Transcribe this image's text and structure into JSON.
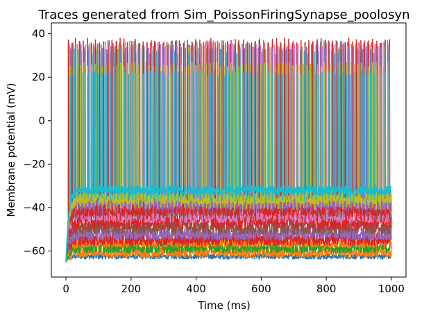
{
  "chart_data": {
    "type": "line",
    "title": "Traces generated from Sim_PoissonFiringSynapse_poolosyn",
    "xlabel": "Time (ms)",
    "ylabel": "Membrane potential (mV)",
    "xlim": [
      -45,
      1045
    ],
    "ylim": [
      -72,
      45
    ],
    "xticks": [
      0,
      200,
      400,
      600,
      800,
      1000
    ],
    "yticks": [
      -60,
      -40,
      -20,
      0,
      20,
      40
    ],
    "x_range_ms": [
      0,
      1000
    ],
    "initial_potential_mV": -65,
    "grid": false,
    "legend": "none",
    "series": [
      {
        "color": "#1f77b4",
        "base_mV": -62.5,
        "noise_mV": 1.2,
        "spike_peak_mV": null
      },
      {
        "color": "#ff7f0e",
        "base_mV": -60.5,
        "noise_mV": 2.5,
        "spike_peak_mV": null
      },
      {
        "color": "#2ca02c",
        "base_mV": -58.5,
        "noise_mV": 2.5,
        "spike_peak_mV": null
      },
      {
        "color": "#ff7f0e",
        "base_mV": -56,
        "noise_mV": 2.5,
        "spike_peak_mV": null
      },
      {
        "color": "#d62728",
        "base_mV": -54.5,
        "noise_mV": 3,
        "spike_peak_mV": null
      },
      {
        "color": "#9467bd",
        "base_mV": -52,
        "noise_mV": 3,
        "spike_peak_mV": null
      },
      {
        "color": "#8c564b",
        "base_mV": -49,
        "noise_mV": 3.5,
        "spike_peak_mV": null
      },
      {
        "color": "#d62728",
        "base_mV": -46,
        "noise_mV": 4,
        "spike_peak_mV": null
      },
      {
        "color": "#e377c2",
        "base_mV": -43,
        "noise_mV": 4,
        "spike_peak_mV": null
      },
      {
        "color": "#7f7f7f",
        "base_mV": -40.5,
        "noise_mV": 3.5,
        "spike_peak_mV": 37
      },
      {
        "color": "#bcbd22",
        "base_mV": -37.5,
        "noise_mV": 3,
        "spike_peak_mV": 35
      },
      {
        "color": "#17becf",
        "base_mV": -34,
        "noise_mV": 2.5,
        "spike_peak_mV": 33
      },
      {
        "color": "#e377c2",
        "base_mV": -39,
        "noise_mV": 3,
        "spike_peak_mV": 36
      },
      {
        "color": "#d62728",
        "base_mV": -41,
        "noise_mV": 3,
        "spike_peak_mV": 38
      },
      {
        "color": "#9467bd",
        "base_mV": -38,
        "noise_mV": 3,
        "spike_peak_mV": 35
      },
      {
        "color": "#bcbd22",
        "base_mV": -36,
        "noise_mV": 2.5,
        "spike_peak_mV": 27
      },
      {
        "color": "#17becf",
        "base_mV": -32,
        "noise_mV": 2,
        "spike_peak_mV": 23
      }
    ]
  }
}
